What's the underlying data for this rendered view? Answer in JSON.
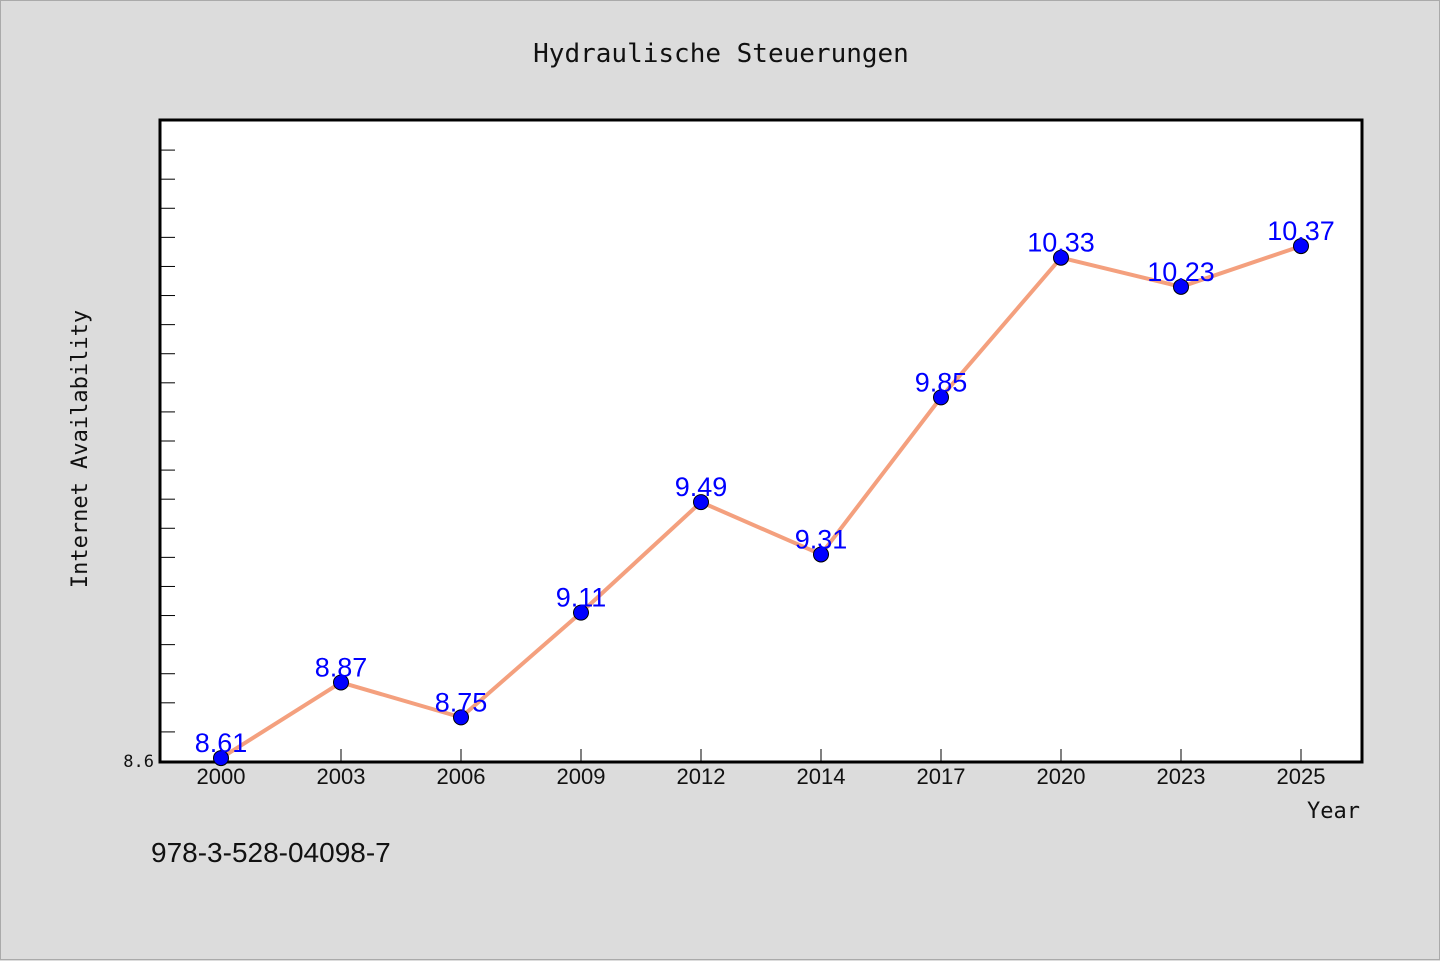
{
  "chart_data": {
    "type": "line",
    "title": "Hydraulische Steuerungen",
    "xlabel": "Year",
    "ylabel": "Internet Availability",
    "categories": [
      "2000",
      "2003",
      "2006",
      "2009",
      "2012",
      "2014",
      "2017",
      "2020",
      "2023",
      "2025"
    ],
    "series": [
      {
        "values": [
          8.61,
          8.87,
          8.75,
          9.11,
          9.49,
          9.31,
          9.85,
          10.33,
          10.23,
          10.37
        ]
      }
    ],
    "data_labels": [
      "8.61",
      "8.87",
      "8.75",
      "9.11",
      "9.49",
      "9.31",
      "9.85",
      "10.33",
      "10.23",
      "10.37"
    ],
    "ylim": [
      8.6,
      10.8
    ],
    "yticks_labeled": [
      "8.6"
    ],
    "ytick_step": 0.1,
    "grid": false,
    "colors": {
      "line": "#f4a07e",
      "marker": "#0000ff",
      "label": "#0000ff",
      "background": "#dcdcdc",
      "plot_background": "#ffffff"
    }
  },
  "footer": {
    "isbn": "978-3-528-04098-7"
  }
}
